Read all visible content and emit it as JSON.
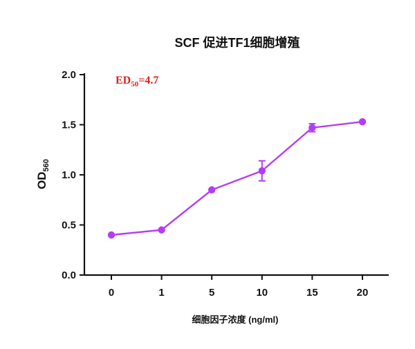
{
  "chart_data": {
    "type": "line",
    "title": "SCF 促进TF1细胞增殖",
    "xlabel": "细胞因子浓度 (ng/ml)",
    "ylabel": {
      "main": "OD",
      "sub": "560"
    },
    "categories": [
      "0",
      "1",
      "5",
      "10",
      "15",
      "20"
    ],
    "series": [
      {
        "values": [
          0.4,
          0.45,
          0.85,
          1.04,
          1.47,
          1.53
        ],
        "errors": [
          0.0,
          0.0,
          0.0,
          0.1,
          0.04,
          0.0
        ],
        "color": "#b43cf5"
      }
    ],
    "ylim": [
      0,
      2.0
    ],
    "yticks": [
      "0.0",
      "0.5",
      "1.0",
      "1.5",
      "2.0"
    ],
    "yticks_values": [
      0,
      0.5,
      1.0,
      1.5,
      2.0
    ],
    "grid": false,
    "annotation": {
      "main": "ED",
      "sub": "50",
      "rest": "=4.7",
      "color": "#e0201b"
    }
  }
}
